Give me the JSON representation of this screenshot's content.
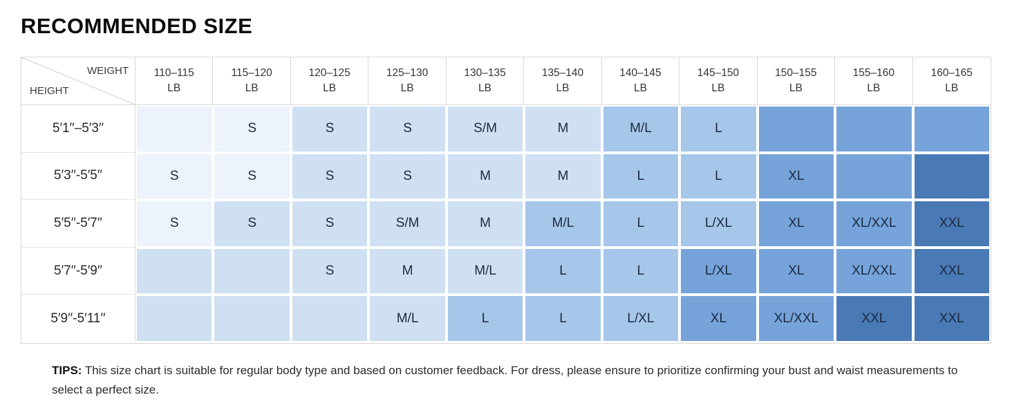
{
  "title": "RECOMMENDED SIZE",
  "colors": {
    "tier0": "#ecf3fb",
    "tier1": "#cfe0f3",
    "tier2": "#a6c6ea",
    "tier3": "#76a4da",
    "tier4": "#4a7ab5",
    "grid_line": "#ffffff",
    "header_border": "#d9d9d9",
    "cell_text": "#1c2940"
  },
  "table": {
    "corner": {
      "weight_label": "WEIGHT",
      "height_label": "HEIGHT"
    },
    "columns": [
      {
        "range": "110–115",
        "unit": "LB"
      },
      {
        "range": "115–120",
        "unit": "LB"
      },
      {
        "range": "120–125",
        "unit": "LB"
      },
      {
        "range": "125–130",
        "unit": "LB"
      },
      {
        "range": "130–135",
        "unit": "LB"
      },
      {
        "range": "135–140",
        "unit": "LB"
      },
      {
        "range": "140–145",
        "unit": "LB"
      },
      {
        "range": "145–150",
        "unit": "LB"
      },
      {
        "range": "150–155",
        "unit": "LB"
      },
      {
        "range": "155–160",
        "unit": "LB"
      },
      {
        "range": "160–165",
        "unit": "LB"
      }
    ],
    "rows": [
      {
        "height": "5′1′′–5′3′′",
        "cells": [
          {
            "size": "",
            "tier": 0
          },
          {
            "size": "S",
            "tier": 0
          },
          {
            "size": "S",
            "tier": 1
          },
          {
            "size": "S",
            "tier": 1
          },
          {
            "size": "S/M",
            "tier": 1
          },
          {
            "size": "M",
            "tier": 1
          },
          {
            "size": "M/L",
            "tier": 2
          },
          {
            "size": "L",
            "tier": 2
          },
          {
            "size": "",
            "tier": 3
          },
          {
            "size": "",
            "tier": 3
          },
          {
            "size": "",
            "tier": 3
          }
        ]
      },
      {
        "height": "5′3′′-5′5′′",
        "cells": [
          {
            "size": "S",
            "tier": 0
          },
          {
            "size": "S",
            "tier": 0
          },
          {
            "size": "S",
            "tier": 1
          },
          {
            "size": "S",
            "tier": 1
          },
          {
            "size": "M",
            "tier": 1
          },
          {
            "size": "M",
            "tier": 1
          },
          {
            "size": "L",
            "tier": 2
          },
          {
            "size": "L",
            "tier": 2
          },
          {
            "size": "XL",
            "tier": 3
          },
          {
            "size": "",
            "tier": 3
          },
          {
            "size": "",
            "tier": 4
          }
        ]
      },
      {
        "height": "5′5′′-5′7′′",
        "cells": [
          {
            "size": "S",
            "tier": 0
          },
          {
            "size": "S",
            "tier": 1
          },
          {
            "size": "S",
            "tier": 1
          },
          {
            "size": "S/M",
            "tier": 1
          },
          {
            "size": "M",
            "tier": 1
          },
          {
            "size": "M/L",
            "tier": 2
          },
          {
            "size": "L",
            "tier": 2
          },
          {
            "size": "L/XL",
            "tier": 2
          },
          {
            "size": "XL",
            "tier": 3
          },
          {
            "size": "XL/XXL",
            "tier": 3
          },
          {
            "size": "XXL",
            "tier": 4
          }
        ]
      },
      {
        "height": "5′7′′-5′9′′",
        "cells": [
          {
            "size": "",
            "tier": 1
          },
          {
            "size": "",
            "tier": 1
          },
          {
            "size": "S",
            "tier": 1
          },
          {
            "size": "M",
            "tier": 1
          },
          {
            "size": "M/L",
            "tier": 1
          },
          {
            "size": "L",
            "tier": 2
          },
          {
            "size": "L",
            "tier": 2
          },
          {
            "size": "L/XL",
            "tier": 3
          },
          {
            "size": "XL",
            "tier": 3
          },
          {
            "size": "XL/XXL",
            "tier": 3
          },
          {
            "size": "XXL",
            "tier": 4
          }
        ]
      },
      {
        "height": "5′9′′-5′11′′",
        "cells": [
          {
            "size": "",
            "tier": 1
          },
          {
            "size": "",
            "tier": 1
          },
          {
            "size": "",
            "tier": 1
          },
          {
            "size": "M/L",
            "tier": 1
          },
          {
            "size": "L",
            "tier": 2
          },
          {
            "size": "L",
            "tier": 2
          },
          {
            "size": "L/XL",
            "tier": 2
          },
          {
            "size": "XL",
            "tier": 3
          },
          {
            "size": "XL/XXL",
            "tier": 3
          },
          {
            "size": "XXL",
            "tier": 4
          },
          {
            "size": "XXL",
            "tier": 4
          }
        ]
      }
    ]
  },
  "tips": {
    "label": "TIPS:",
    "text": "This size chart is suitable for regular body type and based on customer feedback. For dress, please ensure to prioritize confirming your bust and waist measurements to select a perfect size."
  },
  "chart_data": {
    "type": "table",
    "title": "RECOMMENDED SIZE",
    "col_header_label": "WEIGHT",
    "row_header_label": "HEIGHT",
    "columns": [
      "110–115 LB",
      "115–120 LB",
      "120–125 LB",
      "125–130 LB",
      "130–135 LB",
      "135–140 LB",
      "140–145 LB",
      "145–150 LB",
      "150–155 LB",
      "155–160 LB",
      "160–165 LB"
    ],
    "rows": [
      "5′1′′–5′3′′",
      "5′3′′-5′5′′",
      "5′5′′-5′7′′",
      "5′7′′-5′9′′",
      "5′9′′-5′11′′"
    ],
    "values": [
      [
        "",
        "S",
        "S",
        "S",
        "S/M",
        "M",
        "M/L",
        "L",
        "",
        "",
        ""
      ],
      [
        "S",
        "S",
        "S",
        "S",
        "M",
        "M",
        "L",
        "L",
        "XL",
        "",
        ""
      ],
      [
        "S",
        "S",
        "S",
        "S/M",
        "M",
        "M/L",
        "L",
        "L/XL",
        "XL",
        "XL/XXL",
        "XXL"
      ],
      [
        "",
        "",
        "S",
        "M",
        "M/L",
        "L",
        "L",
        "L/XL",
        "XL",
        "XL/XXL",
        "XXL"
      ],
      [
        "",
        "",
        "",
        "M/L",
        "L",
        "L",
        "L/XL",
        "XL",
        "XL/XXL",
        "XXL",
        "XXL"
      ]
    ],
    "legend_note": "Cell shading darkens diagonally from light blue (smaller sizes, top-left) to dark blue (larger sizes, bottom-right)"
  }
}
